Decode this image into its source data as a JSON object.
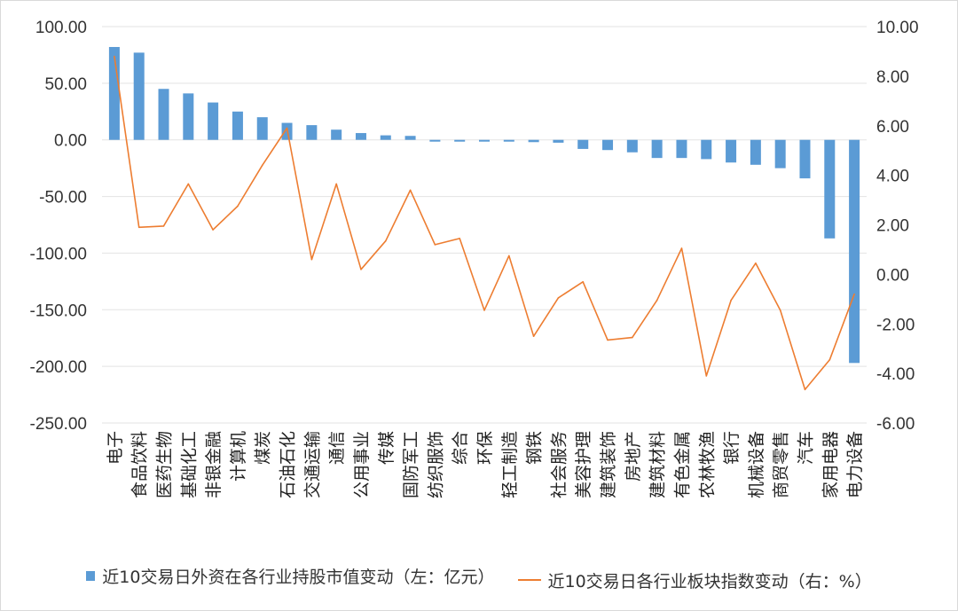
{
  "chart_data": {
    "type": "bar",
    "categories": [
      "电子",
      "食品饮料",
      "医药生物",
      "基础化工",
      "非银金融",
      "计算机",
      "煤炭",
      "石油石化",
      "交通运输",
      "通信",
      "公用事业",
      "传媒",
      "国防军工",
      "纺织服饰",
      "综合",
      "环保",
      "轻工制造",
      "钢铁",
      "社会服务",
      "美容护理",
      "建筑装饰",
      "房地产",
      "建筑材料",
      "有色金属",
      "农林牧渔",
      "银行",
      "机械设备",
      "商贸零售",
      "汽车",
      "家用电器",
      "电力设备"
    ],
    "series": [
      {
        "name": "近10交易日外资在各行业持股市值变动（左：亿元）",
        "kind": "bar",
        "axis": "left",
        "color": "#5b9bd5",
        "values": [
          82,
          77,
          45,
          41,
          33,
          25,
          20,
          15,
          13,
          9,
          6,
          4,
          3.5,
          0,
          0,
          -1,
          -1.5,
          -2,
          -2.5,
          -8,
          -9,
          -11,
          -16,
          -16,
          -17,
          -20,
          -22,
          -25,
          -34,
          -87,
          -197
        ]
      },
      {
        "name": "近10交易日各行业板块指数变动（右：%）",
        "kind": "line",
        "axis": "right",
        "color": "#ed7d31",
        "values": [
          8.8,
          1.9,
          1.95,
          3.65,
          1.8,
          2.75,
          4.4,
          5.9,
          0.6,
          3.65,
          0.2,
          1.35,
          3.4,
          1.2,
          1.45,
          -1.45,
          0.75,
          -2.5,
          -0.95,
          -0.3,
          -2.65,
          -2.55,
          -1.05,
          1.05,
          -4.1,
          -1.05,
          0.45,
          -1.45,
          -4.65,
          -3.45,
          -0.8
        ]
      }
    ],
    "y_left": {
      "min": -250,
      "max": 100,
      "step": 50,
      "tick_labels": [
        "100.00",
        "50.00",
        "0.00",
        "-50.00",
        "-100.00",
        "-150.00",
        "-200.00",
        "-250.00"
      ]
    },
    "y_right": {
      "min": -6,
      "max": 10,
      "step": 2,
      "tick_labels": [
        "10.00",
        "8.00",
        "6.00",
        "4.00",
        "2.00",
        "0.00",
        "-2.00",
        "-4.00",
        "-6.00"
      ]
    },
    "grid": true,
    "legend_position": "bottom"
  }
}
